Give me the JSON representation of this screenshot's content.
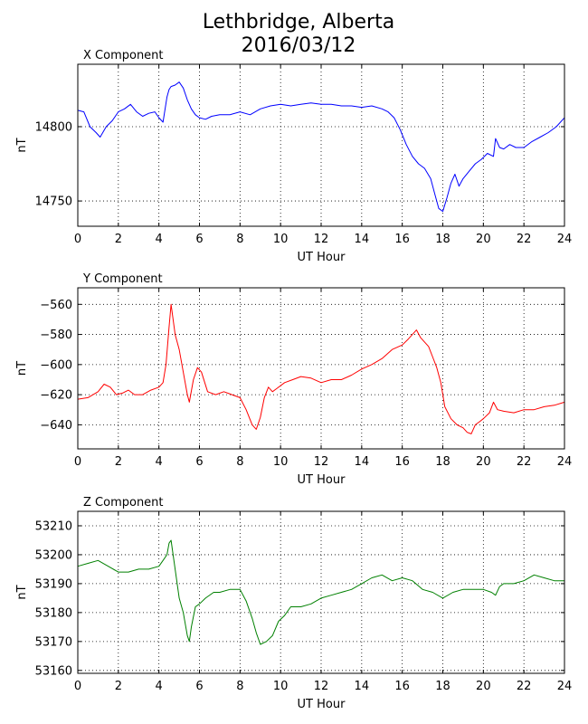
{
  "figure": {
    "title_line1": "Lethbridge, Alberta",
    "title_line2": "2016/03/12"
  },
  "chart_data": [
    {
      "type": "line",
      "title": "X Component",
      "xlabel": "UT Hour",
      "ylabel": "nT",
      "xlim": [
        0,
        24
      ],
      "ylim": [
        14733,
        14842
      ],
      "xticks": [
        0,
        2,
        4,
        6,
        8,
        10,
        12,
        14,
        16,
        18,
        20,
        22,
        24
      ],
      "yticks": [
        14750,
        14800
      ],
      "grid": true,
      "color": "#0000ff",
      "series": [
        {
          "x": [
            0,
            0.3,
            0.6,
            0.9,
            1.1,
            1.4,
            1.7,
            2.0,
            2.3,
            2.6,
            2.9,
            3.2,
            3.5,
            3.8,
            4.0,
            4.2,
            4.4,
            4.5,
            4.6,
            4.8,
            5.0,
            5.2,
            5.4,
            5.6,
            5.8,
            6.0,
            6.3,
            6.6,
            7.0,
            7.5,
            8.0,
            8.5,
            9.0,
            9.5,
            10.0,
            10.5,
            11.0,
            11.5,
            12.0,
            12.5,
            13.0,
            13.5,
            14.0,
            14.5,
            15.0,
            15.3,
            15.6,
            15.9,
            16.2,
            16.5,
            16.8,
            17.1,
            17.4,
            17.6,
            17.8,
            18.0,
            18.2,
            18.4,
            18.6,
            18.8,
            19.0,
            19.3,
            19.6,
            19.9,
            20.2,
            20.5,
            20.6,
            20.8,
            21.0,
            21.3,
            21.6,
            22.0,
            22.4,
            22.8,
            23.2,
            23.6,
            24.0
          ],
          "values": [
            14811,
            14810,
            14800,
            14796,
            14793,
            14800,
            14804,
            14810,
            14812,
            14815,
            14810,
            14807,
            14809,
            14810,
            14806,
            14803,
            14820,
            14825,
            14827,
            14828,
            14830,
            14826,
            14818,
            14812,
            14808,
            14806,
            14805,
            14807,
            14808,
            14808,
            14810,
            14808,
            14812,
            14814,
            14815,
            14814,
            14815,
            14816,
            14815,
            14815,
            14814,
            14814,
            14813,
            14814,
            14812,
            14810,
            14806,
            14798,
            14788,
            14780,
            14775,
            14772,
            14765,
            14755,
            14745,
            14743,
            14752,
            14762,
            14768,
            14760,
            14765,
            14770,
            14775,
            14778,
            14782,
            14780,
            14792,
            14786,
            14785,
            14788,
            14786,
            14786,
            14790,
            14793,
            14796,
            14800,
            14806
          ]
        }
      ]
    },
    {
      "type": "line",
      "title": "Y Component",
      "xlabel": "UT Hour",
      "ylabel": "nT",
      "xlim": [
        0,
        24
      ],
      "ylim": [
        -656,
        -549
      ],
      "xticks": [
        0,
        2,
        4,
        6,
        8,
        10,
        12,
        14,
        16,
        18,
        20,
        22,
        24
      ],
      "yticks": [
        -640,
        -620,
        -600,
        -580,
        -560
      ],
      "grid": true,
      "color": "#ff0000",
      "series": [
        {
          "x": [
            0,
            0.5,
            1.0,
            1.3,
            1.6,
            1.9,
            2.2,
            2.5,
            2.8,
            3.2,
            3.6,
            4.0,
            4.2,
            4.35,
            4.5,
            4.6,
            4.8,
            5.0,
            5.2,
            5.4,
            5.5,
            5.7,
            5.9,
            6.1,
            6.4,
            6.8,
            7.2,
            7.6,
            8.0,
            8.3,
            8.6,
            8.8,
            9.0,
            9.2,
            9.4,
            9.6,
            9.8,
            10.2,
            10.6,
            11.0,
            11.5,
            12.0,
            12.5,
            13.0,
            13.5,
            14.0,
            14.5,
            15.0,
            15.5,
            16.0,
            16.3,
            16.5,
            16.7,
            16.9,
            17.1,
            17.3,
            17.5,
            17.7,
            17.9,
            18.1,
            18.4,
            18.7,
            19.0,
            19.2,
            19.4,
            19.6,
            19.8,
            20.0,
            20.3,
            20.5,
            20.7,
            21.0,
            21.5,
            22.0,
            22.5,
            23.0,
            23.5,
            24.0
          ],
          "values": [
            -623,
            -622,
            -618,
            -613,
            -615,
            -620,
            -619,
            -617,
            -620,
            -620,
            -617,
            -615,
            -612,
            -600,
            -575,
            -560,
            -580,
            -590,
            -605,
            -620,
            -625,
            -610,
            -602,
            -605,
            -618,
            -620,
            -618,
            -620,
            -622,
            -630,
            -640,
            -643,
            -635,
            -622,
            -615,
            -618,
            -616,
            -612,
            -610,
            -608,
            -609,
            -612,
            -610,
            -610,
            -607,
            -603,
            -600,
            -596,
            -590,
            -587,
            -583,
            -580,
            -577,
            -582,
            -585,
            -588,
            -595,
            -602,
            -612,
            -628,
            -636,
            -640,
            -642,
            -645,
            -646,
            -640,
            -638,
            -636,
            -632,
            -625,
            -630,
            -631,
            -632,
            -630,
            -630,
            -628,
            -627,
            -625
          ]
        }
      ]
    },
    {
      "type": "line",
      "title": "Z Component",
      "xlabel": "UT Hour",
      "ylabel": "nT",
      "xlim": [
        0,
        24
      ],
      "ylim": [
        53159,
        53215
      ],
      "xticks": [
        0,
        2,
        4,
        6,
        8,
        10,
        12,
        14,
        16,
        18,
        20,
        22,
        24
      ],
      "yticks": [
        53160,
        53170,
        53180,
        53190,
        53200,
        53210
      ],
      "grid": true,
      "color": "#008000",
      "series": [
        {
          "x": [
            0,
            0.5,
            1.0,
            1.5,
            2.0,
            2.5,
            3.0,
            3.5,
            4.0,
            4.2,
            4.4,
            4.5,
            4.6,
            4.8,
            5.0,
            5.2,
            5.4,
            5.5,
            5.6,
            5.8,
            6.0,
            6.3,
            6.7,
            7.0,
            7.5,
            8.0,
            8.3,
            8.6,
            8.8,
            9.0,
            9.3,
            9.6,
            9.9,
            10.2,
            10.5,
            11.0,
            11.5,
            12.0,
            12.5,
            13.0,
            13.5,
            14.0,
            14.5,
            15.0,
            15.5,
            16.0,
            16.5,
            17.0,
            17.5,
            18.0,
            18.5,
            19.0,
            19.5,
            20.0,
            20.4,
            20.6,
            20.8,
            21.0,
            21.5,
            22.0,
            22.5,
            23.0,
            23.5,
            24.0
          ],
          "values": [
            53196,
            53197,
            53198,
            53196,
            53194,
            53194,
            53195,
            53195,
            53196,
            53198,
            53200,
            53204,
            53205,
            53195,
            53185,
            53180,
            53172,
            53170,
            53175,
            53182,
            53183,
            53185,
            53187,
            53187,
            53188,
            53188,
            53184,
            53178,
            53173,
            53169,
            53170,
            53172,
            53177,
            53179,
            53182,
            53182,
            53183,
            53185,
            53186,
            53187,
            53188,
            53190,
            53192,
            53193,
            53191,
            53192,
            53191,
            53188,
            53187,
            53185,
            53187,
            53188,
            53188,
            53188,
            53187,
            53186,
            53189,
            53190,
            53190,
            53191,
            53193,
            53192,
            53191,
            53191
          ]
        }
      ]
    }
  ]
}
